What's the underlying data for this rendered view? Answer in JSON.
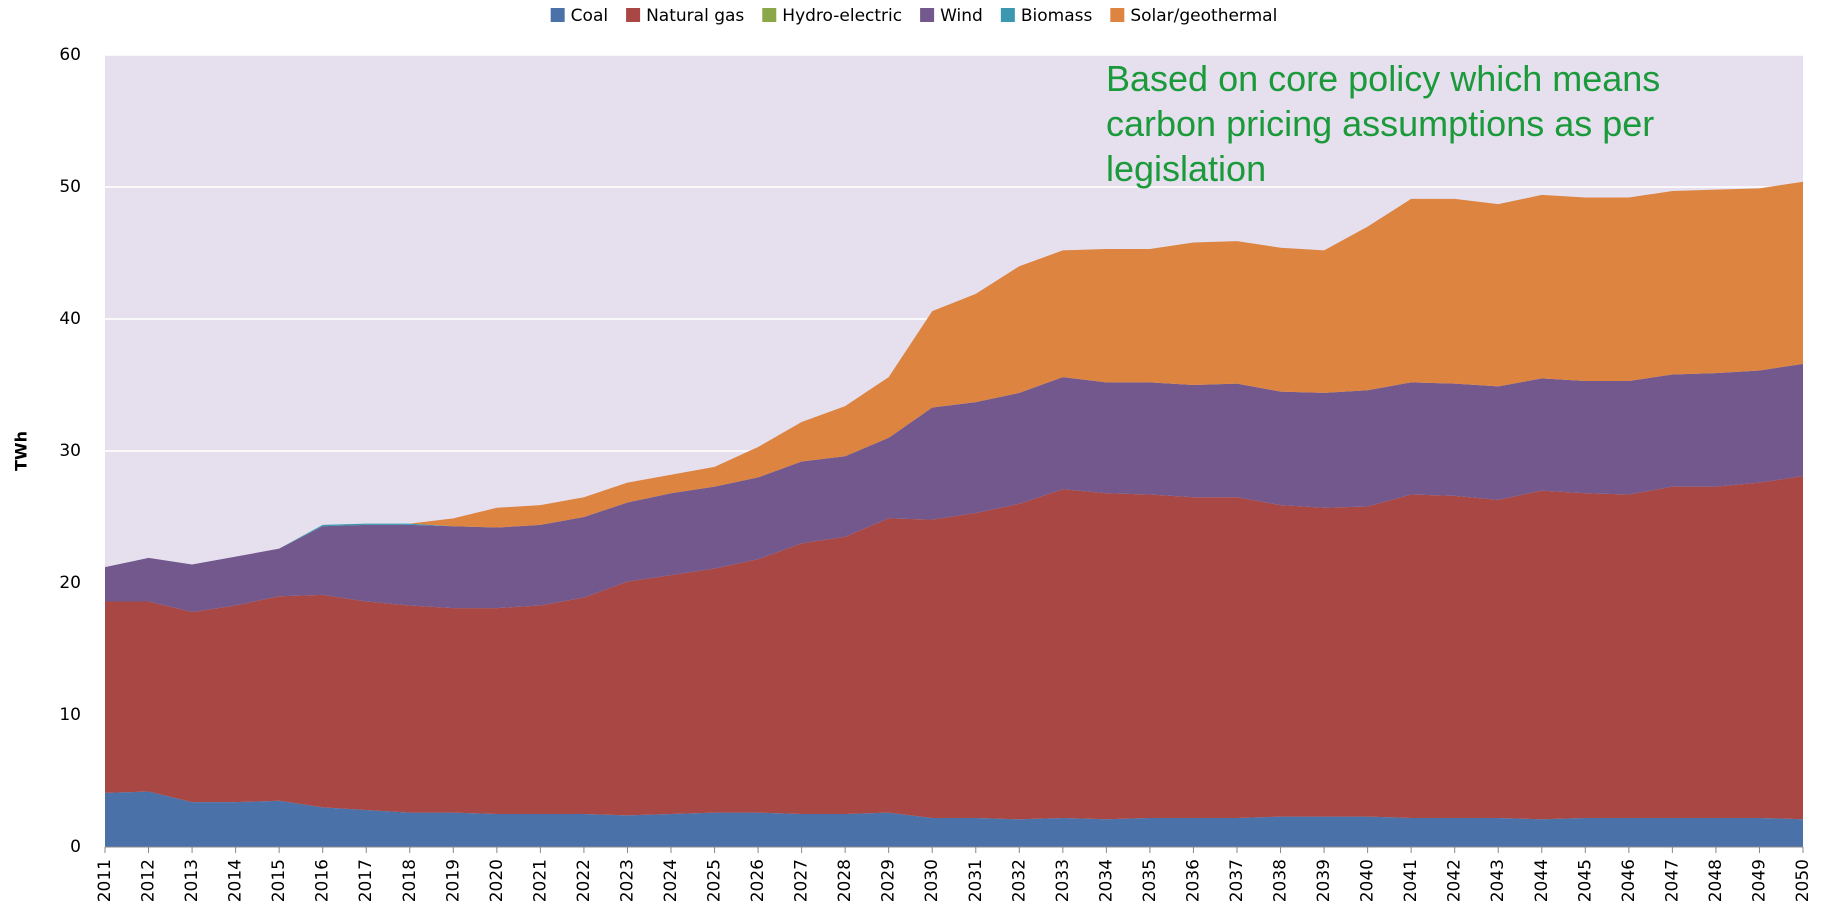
{
  "chart_data": {
    "type": "stacked_area",
    "annotation": "Based on core policy which means carbon pricing assumptions as per legislation",
    "y_axis_label": "TWh",
    "categories": [
      "2011",
      "2012",
      "2013",
      "2014",
      "2015",
      "2016",
      "2017",
      "2018",
      "2019",
      "2020",
      "2021",
      "2022",
      "2023",
      "2024",
      "2025",
      "2026",
      "2027",
      "2028",
      "2029",
      "2030",
      "2031",
      "2032",
      "2033",
      "2034",
      "2035",
      "2036",
      "2037",
      "2038",
      "2039",
      "2040",
      "2041",
      "2042",
      "2043",
      "2044",
      "2045",
      "2046",
      "2047",
      "2048",
      "2049",
      "2050"
    ],
    "series": [
      {
        "name": "Coal",
        "color": "#4a72a8",
        "values": [
          4.1,
          4.2,
          3.4,
          3.4,
          3.5,
          3.0,
          2.8,
          2.6,
          2.6,
          2.5,
          2.5,
          2.5,
          2.4,
          2.5,
          2.6,
          2.6,
          2.5,
          2.5,
          2.6,
          2.2,
          2.2,
          2.1,
          2.2,
          2.1,
          2.2,
          2.2,
          2.2,
          2.3,
          2.3,
          2.3,
          2.2,
          2.2,
          2.2,
          2.1,
          2.2,
          2.2,
          2.2,
          2.2,
          2.2,
          2.1
        ]
      },
      {
        "name": "Natural gas",
        "color": "#a84744",
        "values": [
          14.5,
          14.4,
          14.4,
          14.9,
          15.5,
          16.1,
          15.8,
          15.7,
          15.5,
          15.6,
          15.8,
          16.4,
          17.7,
          18.1,
          18.5,
          19.2,
          20.5,
          21.0,
          22.3,
          22.6,
          23.1,
          23.9,
          24.9,
          24.7,
          24.5,
          24.3,
          24.3,
          23.6,
          23.4,
          23.5,
          24.5,
          24.4,
          24.1,
          24.9,
          24.6,
          24.5,
          25.1,
          25.1,
          25.4,
          26.0
        ]
      },
      {
        "name": "Hydro-electric",
        "color": "#8aa84a",
        "values": [
          0,
          0,
          0,
          0,
          0,
          0,
          0,
          0,
          0,
          0,
          0,
          0,
          0,
          0,
          0,
          0,
          0,
          0,
          0,
          0,
          0,
          0,
          0,
          0,
          0,
          0,
          0,
          0,
          0,
          0,
          0,
          0,
          0,
          0,
          0,
          0,
          0,
          0,
          0,
          0
        ]
      },
      {
        "name": "Wind",
        "color": "#72588c",
        "values": [
          2.6,
          3.3,
          3.6,
          3.7,
          3.6,
          5.2,
          5.8,
          6.1,
          6.2,
          6.1,
          6.1,
          6.1,
          6.0,
          6.2,
          6.2,
          6.2,
          6.2,
          6.1,
          6.1,
          8.5,
          8.4,
          8.4,
          8.5,
          8.4,
          8.5,
          8.5,
          8.6,
          8.6,
          8.7,
          8.8,
          8.5,
          8.5,
          8.6,
          8.5,
          8.5,
          8.6,
          8.5,
          8.6,
          8.5,
          8.5
        ]
      },
      {
        "name": "Biomass",
        "color": "#3c98b0",
        "values": [
          0,
          0,
          0,
          0,
          0,
          0.1,
          0.1,
          0.1,
          0,
          0,
          0,
          0,
          0,
          0,
          0,
          0,
          0,
          0,
          0,
          0,
          0,
          0,
          0,
          0,
          0,
          0,
          0,
          0,
          0,
          0,
          0,
          0,
          0,
          0,
          0,
          0,
          0,
          0,
          0,
          0
        ]
      },
      {
        "name": "Solar/geothermal",
        "color": "#dc8440",
        "values": [
          0,
          0,
          0,
          0,
          0,
          0,
          0,
          0,
          0.6,
          1.5,
          1.5,
          1.5,
          1.5,
          1.4,
          1.5,
          2.3,
          3.0,
          3.8,
          4.6,
          7.3,
          8.2,
          9.6,
          9.6,
          10.1,
          10.1,
          10.8,
          10.8,
          10.9,
          10.8,
          12.4,
          13.9,
          14.0,
          13.8,
          13.9,
          13.9,
          13.9,
          13.9,
          13.9,
          13.8,
          13.8
        ]
      }
    ],
    "ylim": [
      0,
      60
    ],
    "yticks": [
      0,
      10,
      20,
      30,
      40,
      50,
      60
    ],
    "grid": true,
    "legend": "top",
    "plot_background": "#e6e0ee"
  }
}
